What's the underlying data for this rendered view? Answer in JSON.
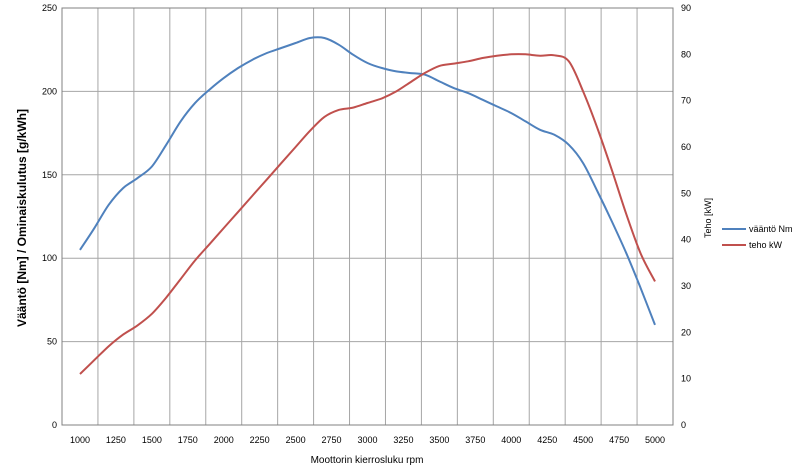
{
  "chart_data": {
    "type": "line",
    "xlabel": "Moottorin kierrosluku rpm",
    "ylabel_left": "Vääntö [Nm] / Ominaiskulutus [g/kWh]",
    "ylabel_right": "Teho [kW]",
    "x_ticks": [
      1000,
      1250,
      1500,
      1750,
      2000,
      2250,
      2500,
      2750,
      3000,
      3250,
      3500,
      3750,
      4000,
      4250,
      4500,
      4750,
      5000
    ],
    "ylim_left": [
      0,
      250
    ],
    "y_ticks_left": [
      0,
      50,
      100,
      150,
      200,
      250
    ],
    "ylim_right": [
      0,
      90
    ],
    "y_ticks_right": [
      0,
      10,
      20,
      30,
      40,
      50,
      60,
      70,
      80,
      90
    ],
    "grid": true,
    "legend_position": "right",
    "series": [
      {
        "name": "vääntö Nm",
        "axis": "left",
        "color": "#4f81bd",
        "x": [
          1000,
          1100,
          1200,
          1300,
          1400,
          1500,
          1600,
          1700,
          1800,
          1900,
          2000,
          2100,
          2200,
          2300,
          2400,
          2500,
          2600,
          2700,
          2800,
          2900,
          3000,
          3100,
          3200,
          3300,
          3400,
          3500,
          3600,
          3700,
          3800,
          3900,
          4000,
          4100,
          4200,
          4300,
          4400,
          4500,
          4600,
          4700,
          4800,
          4900,
          5000
        ],
        "y": [
          105,
          118,
          132,
          142,
          148,
          155,
          168,
          182,
          193,
          201,
          208,
          214,
          219,
          223,
          226,
          229,
          232,
          232,
          228,
          222,
          217,
          214,
          212,
          211,
          210,
          206,
          202,
          199,
          195,
          191,
          187,
          182,
          177,
          174,
          168,
          157,
          140,
          122,
          103,
          82,
          60
        ]
      },
      {
        "name": "teho kW",
        "axis": "right",
        "color": "#c0504d",
        "x": [
          1000,
          1100,
          1200,
          1300,
          1400,
          1500,
          1600,
          1700,
          1800,
          1900,
          2000,
          2100,
          2200,
          2300,
          2400,
          2500,
          2600,
          2700,
          2800,
          2900,
          3000,
          3100,
          3200,
          3300,
          3400,
          3500,
          3600,
          3700,
          3800,
          3900,
          4000,
          4100,
          4200,
          4300,
          4400,
          4500,
          4600,
          4700,
          4800,
          4900,
          5000
        ],
        "y": [
          11,
          14,
          17,
          19.5,
          21.5,
          24,
          27.5,
          31.5,
          35.5,
          39,
          42.5,
          46,
          49.5,
          53,
          56.5,
          60,
          63.5,
          66.5,
          68,
          68.5,
          69.5,
          70.5,
          72,
          74,
          76,
          77.5,
          78,
          78.5,
          79.2,
          79.7,
          80,
          80,
          79.7,
          79.8,
          78.5,
          72,
          64,
          55,
          45.5,
          37,
          31
        ]
      }
    ]
  }
}
